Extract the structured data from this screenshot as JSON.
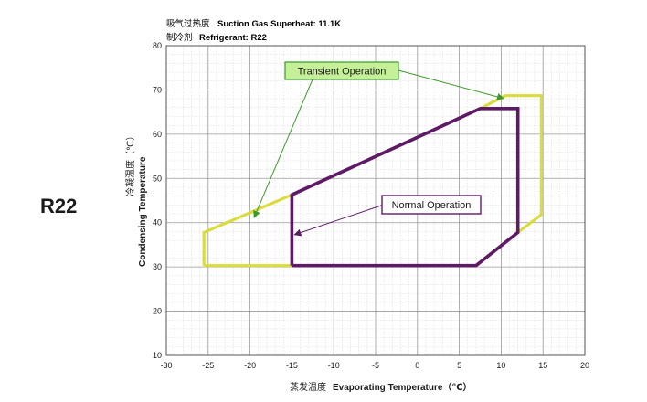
{
  "header": {
    "superheat_cn": "吸气过热度",
    "superheat_en": "Suction Gas Superheat: 11.1K",
    "refrigerant_cn": "制冷剂",
    "refrigerant_en": "Refrigerant: R22"
  },
  "side_label": "R22",
  "chart_data": {
    "type": "line",
    "xlabel_cn": "蒸发温度",
    "xlabel": "Evaporating Temperature（℃）",
    "ylabel_cn": "冷凝温度（℃）",
    "ylabel": "Condensing Temperature",
    "xlim": [
      -30,
      20
    ],
    "ylim": [
      10,
      80
    ],
    "x_ticks": [
      "-30",
      "-25",
      "-20",
      "-15",
      "-10",
      "-5",
      "0",
      "5",
      "10",
      "15",
      "20"
    ],
    "y_ticks": [
      "10",
      "20",
      "30",
      "40",
      "50",
      "60",
      "70",
      "80"
    ],
    "grid": true,
    "series": [
      {
        "name": "Transient Operation",
        "color": "#d9dc3c",
        "points": [
          [
            -25.5,
            30.3
          ],
          [
            -25.5,
            37.8
          ],
          [
            -15,
            46.3
          ],
          [
            7.5,
            65.8
          ],
          [
            10.5,
            68.7
          ],
          [
            14.8,
            68.7
          ],
          [
            14.8,
            41.8
          ],
          [
            12,
            37.8
          ],
          [
            7,
            30.3
          ],
          [
            -25.5,
            30.3
          ]
        ]
      },
      {
        "name": "Normal Operation",
        "color": "#5e1a66",
        "points": [
          [
            -15,
            30.3
          ],
          [
            -15,
            46.3
          ],
          [
            7.5,
            65.8
          ],
          [
            12,
            65.8
          ],
          [
            12,
            37.8
          ],
          [
            7,
            30.3
          ],
          [
            -15,
            30.3
          ]
        ]
      }
    ],
    "annotations": [
      {
        "text": "Transient Operation",
        "box_color": "#c6ef9a",
        "border_color": "#3b9a2a",
        "arrow_color": "#3b9a2a",
        "points_to": [
          [
            10.5,
            68.7
          ],
          [
            -19.5,
            41.2
          ]
        ]
      },
      {
        "text": "Normal Operation",
        "box_color": "#ffffff",
        "border_color": "#5e1a66",
        "arrow_color": "#5e1a66",
        "points_to": [
          [
            -15,
            37.5
          ]
        ]
      }
    ]
  }
}
